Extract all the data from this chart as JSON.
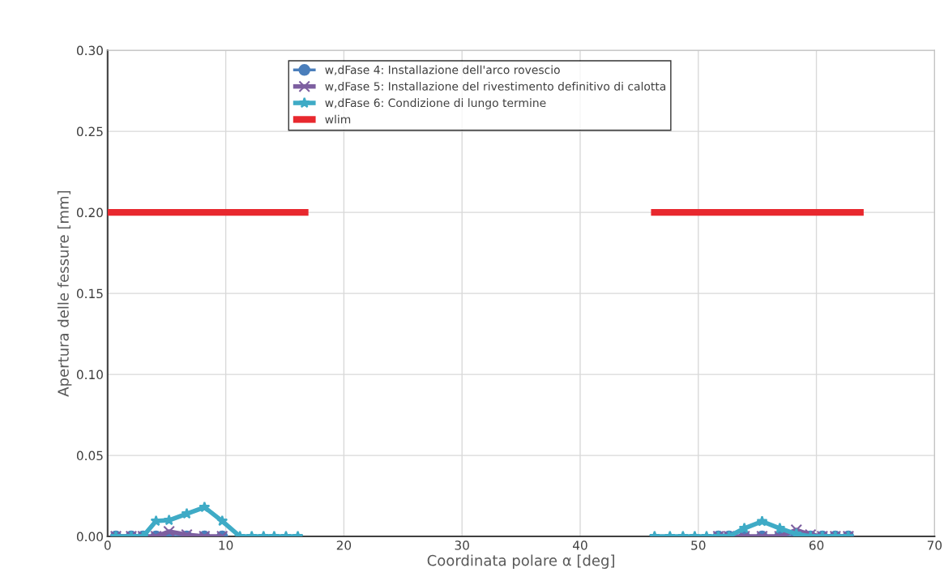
{
  "chart_data": {
    "type": "line",
    "xlabel": "Coordinata polare α [deg]",
    "ylabel": "Apertura delle fessure [mm]",
    "xlim": [
      0,
      70
    ],
    "xticks": [
      0,
      10,
      20,
      30,
      40,
      50,
      60,
      70
    ],
    "ylim": [
      0,
      0.3
    ],
    "yticks": [
      {
        "value": 0,
        "label": "0.00"
      },
      {
        "value": 0.05,
        "label": "0.05"
      },
      {
        "value": 0.1,
        "label": "0.10"
      },
      {
        "value": 0.15,
        "label": "0.15"
      },
      {
        "value": 0.2,
        "label": "0.20"
      },
      {
        "value": 0.25,
        "label": "0.25"
      },
      {
        "value": 0.3,
        "label": "0.30"
      }
    ],
    "grid": true,
    "legend": "top",
    "line_style": "solid",
    "series": [
      {
        "name": "w,dFase 4: Installazione dell'arco rovescio",
        "color": "#4a7ebb",
        "marker": "circle",
        "x": [
          0.7,
          2.0,
          3.0,
          4.1,
          5.2,
          6.7,
          8.2,
          9.7,
          30,
          51.7,
          52.6,
          53.9,
          55.4,
          56.9,
          58.3,
          59.5,
          60.5,
          61.6,
          62.7
        ],
        "values": [
          0,
          0,
          0,
          0,
          0,
          0,
          0,
          0,
          null,
          0,
          0,
          0,
          0,
          0,
          0,
          0,
          0,
          0,
          0
        ]
      },
      {
        "name": "w,dFase 5: Installazione del rivestimento definitivo di calotta",
        "color": "#7d5fa0",
        "marker": "cross",
        "x": [
          0.7,
          2.0,
          3.0,
          4.1,
          5.2,
          6.7,
          8.2,
          9.7,
          30,
          51.7,
          52.6,
          53.9,
          55.4,
          56.9,
          58.3,
          59.5,
          60.5,
          61.6,
          62.7
        ],
        "values": [
          0,
          0,
          0,
          0,
          0.003,
          0.001,
          0,
          0,
          null,
          0,
          0,
          0,
          0,
          0,
          0.004,
          0.001,
          0,
          0,
          0
        ]
      },
      {
        "name": "w,dFase 6: Condizione di lungo termine",
        "color": "#3fabc6",
        "marker": "star",
        "x": [
          0.7,
          2.0,
          3.0,
          4.1,
          5.2,
          6.7,
          8.2,
          9.7,
          11.2,
          12.2,
          13.2,
          14.1,
          15.1,
          16.1,
          30,
          46.3,
          47.6,
          48.7,
          49.7,
          50.7,
          51.7,
          52.6,
          53.9,
          55.4,
          56.9,
          58.3,
          59.5,
          60.5,
          61.6,
          62.7
        ],
        "values": [
          0,
          0,
          0,
          0.0095,
          0.01,
          0.014,
          0.018,
          0.0095,
          0,
          0,
          0,
          0,
          0,
          0,
          null,
          0,
          0,
          0,
          0,
          0,
          0,
          0,
          0.005,
          0.0093,
          0.005,
          0.0015,
          0,
          0,
          0,
          0
        ]
      },
      {
        "name": "wlim",
        "color": "#e8282e",
        "marker": "none",
        "x": [
          0,
          17,
          30,
          46,
          64
        ],
        "values": [
          0.2,
          0.2,
          null,
          0.2,
          0.2
        ]
      }
    ]
  }
}
